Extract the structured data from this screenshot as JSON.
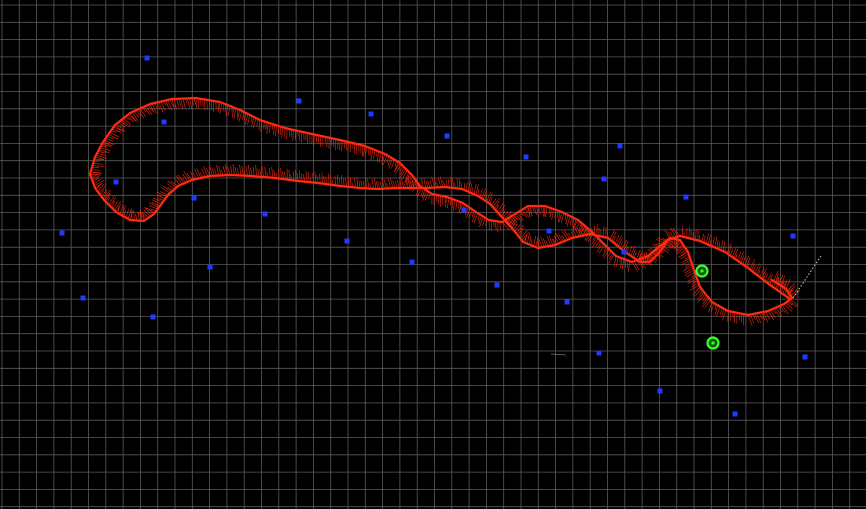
{
  "colors": {
    "background": "#000000",
    "grid": "#5a5a5a",
    "trajectory": "#ff2a10",
    "landmark": "#1e3cff",
    "marker_ring": "#39ff2a",
    "marker_core": "#0a5a0a",
    "sensor_ray": "#d0d0d0"
  }
}
